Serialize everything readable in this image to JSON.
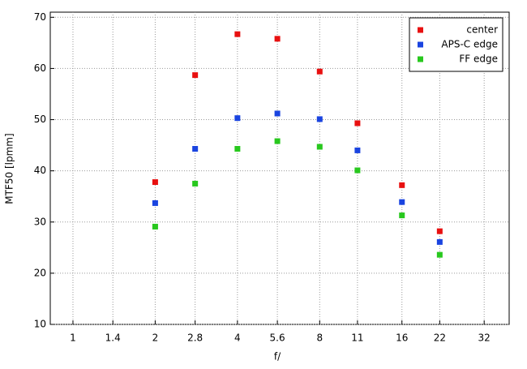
{
  "chart_data": {
    "type": "scatter",
    "x_label": "f/",
    "y_label": "MTF50 [lpmm]",
    "x": [
      2,
      2.8,
      4,
      5.6,
      8,
      11,
      16,
      22
    ],
    "series": [
      {
        "name": "center",
        "color": "#e81010",
        "values": [
          37.8,
          58.7,
          66.7,
          65.8,
          59.4,
          49.3,
          37.2,
          28.2
        ]
      },
      {
        "name": "APS-C edge",
        "color": "#1a44e0",
        "values": [
          33.7,
          44.3,
          50.3,
          51.2,
          50.1,
          44.0,
          33.9,
          26.1
        ]
      },
      {
        "name": "FF edge",
        "color": "#28c81e",
        "values": [
          29.1,
          37.5,
          44.3,
          45.8,
          44.7,
          40.1,
          31.3,
          23.6
        ]
      }
    ],
    "xscale": "log",
    "xlim": [
      0.826,
      39.5
    ],
    "xticks": [
      1,
      1.4,
      2,
      2.8,
      4,
      5.6,
      8,
      11,
      16,
      22,
      32
    ],
    "ylim": [
      10,
      71
    ],
    "yticks": [
      10,
      20,
      30,
      40,
      50,
      60,
      70
    ],
    "grid": true,
    "legend": "upper right"
  }
}
